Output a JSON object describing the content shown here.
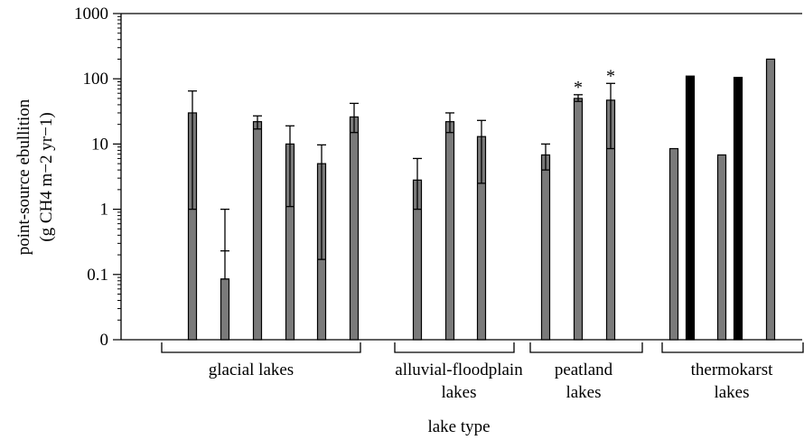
{
  "chart_data": {
    "type": "bar",
    "scale": "log",
    "y_ticks": [
      {
        "value": 0.01,
        "label": "0"
      },
      {
        "value": 0.1,
        "label": "0.1"
      },
      {
        "value": 1,
        "label": "1"
      },
      {
        "value": 10,
        "label": "10"
      },
      {
        "value": 100,
        "label": "100"
      },
      {
        "value": 1000,
        "label": "1000"
      }
    ],
    "ylim": [
      0.01,
      1000
    ],
    "ylabel_line1": "point-source ebullition",
    "ylabel_line2": "(g CH4 m−2 yr−1)",
    "xlabel": "lake type",
    "colors": {
      "grey": "#7a7a7a",
      "black": "#000000"
    },
    "groups": [
      {
        "name_lines": [
          "glacial lakes"
        ],
        "bars": [
          {
            "value": 30,
            "err_low": 1,
            "err_high": 65,
            "color": "grey",
            "marker": ""
          },
          {
            "value": 0.085,
            "err_low": 0.085,
            "err_high": 1,
            "err_mid": 0.23,
            "color": "grey",
            "marker": ""
          },
          {
            "value": 22,
            "err_low": 17,
            "err_high": 27,
            "color": "grey",
            "marker": ""
          },
          {
            "value": 10,
            "err_low": 1.1,
            "err_high": 19,
            "color": "grey",
            "marker": ""
          },
          {
            "value": 5,
            "err_low": 0.17,
            "err_high": 9.7,
            "color": "grey",
            "marker": ""
          },
          {
            "value": 26,
            "err_low": 15,
            "err_high": 42,
            "color": "grey",
            "marker": ""
          }
        ]
      },
      {
        "name_lines": [
          "alluvial-floodplain",
          "lakes"
        ],
        "bars": [
          {
            "value": 2.8,
            "err_low": 1,
            "err_high": 6,
            "color": "grey",
            "marker": ""
          },
          {
            "value": 22,
            "err_low": 15,
            "err_high": 30,
            "color": "grey",
            "marker": ""
          },
          {
            "value": 13,
            "err_low": 2.5,
            "err_high": 23,
            "color": "grey",
            "marker": ""
          }
        ]
      },
      {
        "name_lines": [
          "peatland",
          "lakes"
        ],
        "bars": [
          {
            "value": 6.8,
            "err_low": 4,
            "err_high": 10,
            "color": "grey",
            "marker": ""
          },
          {
            "value": 50,
            "err_low": 45,
            "err_high": 57,
            "color": "grey",
            "marker": "*"
          },
          {
            "value": 47,
            "err_low": 8.5,
            "err_high": 85,
            "color": "grey",
            "marker": "*"
          }
        ]
      },
      {
        "name_lines": [
          "thermokarst",
          "lakes"
        ],
        "bars": [
          {
            "value": 8.5,
            "color": "grey",
            "marker": ""
          },
          {
            "value": 110,
            "color": "black",
            "marker": ""
          },
          {
            "value": 6.8,
            "color": "grey",
            "marker": ""
          },
          {
            "value": 105,
            "color": "black",
            "marker": ""
          },
          {
            "value": 200,
            "color": "grey",
            "marker": ""
          }
        ]
      }
    ]
  }
}
